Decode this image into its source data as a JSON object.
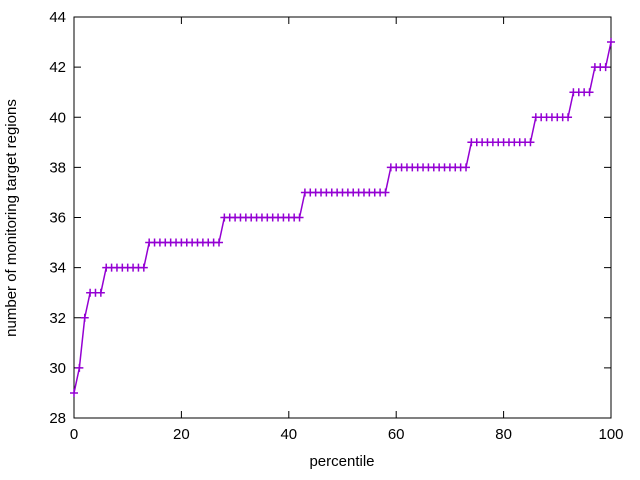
{
  "chart_data": {
    "type": "line",
    "title": "",
    "xlabel": "percentile",
    "ylabel": "number of monitoring target regions",
    "xlim": [
      0,
      100
    ],
    "ylim": [
      28,
      44
    ],
    "xticks": [
      0,
      20,
      40,
      60,
      80,
      100
    ],
    "yticks": [
      28,
      30,
      32,
      34,
      36,
      38,
      40,
      42,
      44
    ],
    "grid": false,
    "legend": "none",
    "marker": "plus",
    "line_color": "#9400d3",
    "axis_color": "#000000",
    "background_color": "#ffffff",
    "x": [
      0,
      1,
      2,
      3,
      4,
      5,
      6,
      7,
      8,
      9,
      10,
      11,
      12,
      13,
      14,
      15,
      16,
      17,
      18,
      19,
      20,
      21,
      22,
      23,
      24,
      25,
      26,
      27,
      28,
      29,
      30,
      31,
      32,
      33,
      34,
      35,
      36,
      37,
      38,
      39,
      40,
      41,
      42,
      43,
      44,
      45,
      46,
      47,
      48,
      49,
      50,
      51,
      52,
      53,
      54,
      55,
      56,
      57,
      58,
      59,
      60,
      61,
      62,
      63,
      64,
      65,
      66,
      67,
      68,
      69,
      70,
      71,
      72,
      73,
      74,
      75,
      76,
      77,
      78,
      79,
      80,
      81,
      82,
      83,
      84,
      85,
      86,
      87,
      88,
      89,
      90,
      91,
      92,
      93,
      94,
      95,
      96,
      97,
      98,
      99,
      100
    ],
    "y": [
      29,
      30,
      32,
      33,
      33,
      33,
      34,
      34,
      34,
      34,
      34,
      34,
      34,
      34,
      35,
      35,
      35,
      35,
      35,
      35,
      35,
      35,
      35,
      35,
      35,
      35,
      35,
      35,
      36,
      36,
      36,
      36,
      36,
      36,
      36,
      36,
      36,
      36,
      36,
      36,
      36,
      36,
      36,
      37,
      37,
      37,
      37,
      37,
      37,
      37,
      37,
      37,
      37,
      37,
      37,
      37,
      37,
      37,
      37,
      38,
      38,
      38,
      38,
      38,
      38,
      38,
      38,
      38,
      38,
      38,
      38,
      38,
      38,
      38,
      39,
      39,
      39,
      39,
      39,
      39,
      39,
      39,
      39,
      39,
      39,
      39,
      40,
      40,
      40,
      40,
      40,
      40,
      40,
      41,
      41,
      41,
      41,
      42,
      42,
      42,
      43
    ]
  }
}
